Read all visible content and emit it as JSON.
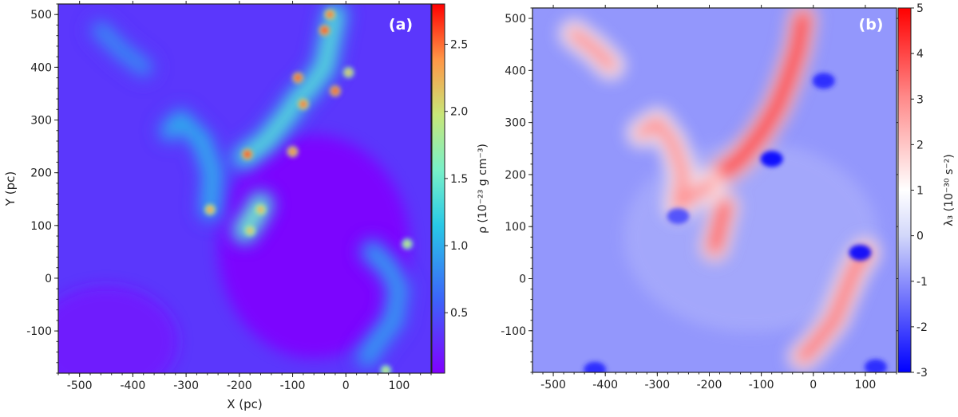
{
  "chart_data": [
    {
      "type": "heatmap",
      "panel_label": "(a)",
      "xlabel": "X (pc)",
      "ylabel": "Y (pc)",
      "xlim": [
        -540,
        160
      ],
      "ylim": [
        -180,
        520
      ],
      "xticks": [
        -500,
        -400,
        -300,
        -200,
        -100,
        0,
        100
      ],
      "yticks": [
        -100,
        0,
        100,
        200,
        300,
        400,
        500
      ],
      "xticklabels": [
        "-500",
        "-400",
        "-300",
        "-200",
        "-100",
        "0",
        "100"
      ],
      "yticklabels": [
        "-100",
        "0",
        "100",
        "200",
        "300",
        "400",
        "500"
      ],
      "colorbar": {
        "label": "ρ (10⁻²³ g cm⁻³)",
        "colormap": "rainbow",
        "range": [
          0.05,
          2.8
        ],
        "ticks": [
          0.5,
          1.0,
          1.5,
          2.0,
          2.5
        ],
        "ticklabels": [
          "0.5",
          "1.0",
          "1.5",
          "2.0",
          "2.5"
        ]
      },
      "features": [
        {
          "name": "filament-main",
          "points": [
            [
              -190,
              230
            ],
            [
              -150,
              260
            ],
            [
              -110,
              310
            ],
            [
              -90,
              340
            ],
            [
              -70,
              360
            ],
            [
              -40,
              400
            ],
            [
              -30,
              450
            ],
            [
              -20,
              500
            ]
          ],
          "value": 1.4
        },
        {
          "name": "filament-south",
          "points": [
            [
              -190,
              90
            ],
            [
              -170,
              120
            ],
            [
              -160,
              140
            ]
          ],
          "value": 1.6
        },
        {
          "name": "cloud-west",
          "points": [
            [
              -330,
              280
            ],
            [
              -310,
              300
            ],
            [
              -270,
              260
            ],
            [
              -250,
              200
            ],
            [
              -255,
              130
            ]
          ],
          "value": 1.0
        },
        {
          "name": "cloud-southeast",
          "points": [
            [
              50,
              50
            ],
            [
              80,
              20
            ],
            [
              100,
              -20
            ],
            [
              90,
              -80
            ],
            [
              60,
              -120
            ],
            [
              40,
              -150
            ]
          ],
          "value": 0.9
        },
        {
          "name": "cloud-northwest",
          "points": [
            [
              -460,
              470
            ],
            [
              -420,
              430
            ],
            [
              -380,
              400
            ]
          ],
          "value": 0.8
        }
      ],
      "peaks": [
        {
          "x": -40,
          "y": 470,
          "value": 2.8
        },
        {
          "x": -30,
          "y": 500,
          "value": 2.6
        },
        {
          "x": -90,
          "y": 380,
          "value": 2.7
        },
        {
          "x": -20,
          "y": 355,
          "value": 2.7
        },
        {
          "x": -80,
          "y": 330,
          "value": 2.6
        },
        {
          "x": -185,
          "y": 235,
          "value": 2.8
        },
        {
          "x": -100,
          "y": 240,
          "value": 2.5
        },
        {
          "x": -255,
          "y": 130,
          "value": 2.4
        },
        {
          "x": -180,
          "y": 90,
          "value": 2.2
        },
        {
          "x": -160,
          "y": 130,
          "value": 2.3
        },
        {
          "x": 5,
          "y": 390,
          "value": 2.2
        },
        {
          "x": 115,
          "y": 65,
          "value": 2.0
        },
        {
          "x": 75,
          "y": -175,
          "value": 2.0
        }
      ]
    },
    {
      "type": "heatmap",
      "panel_label": "(b)",
      "xlabel": "",
      "ylabel": "",
      "xlim": [
        -540,
        160
      ],
      "ylim": [
        -180,
        520
      ],
      "xticks": [
        -500,
        -400,
        -300,
        -200,
        -100,
        0,
        100
      ],
      "yticks": [
        -100,
        0,
        100,
        200,
        300,
        400,
        500
      ],
      "xticklabels": [
        "-500",
        "-400",
        "-300",
        "-200",
        "-100",
        "0",
        "100"
      ],
      "yticklabels": [
        "-100",
        "0",
        "100",
        "200",
        "300",
        "400",
        "500"
      ],
      "colorbar": {
        "label": "λ₃ (10⁻³⁰ s⁻²)",
        "colormap": "bwr",
        "range": [
          -3,
          5
        ],
        "ticks": [
          -3,
          -2,
          -1,
          0,
          1,
          2,
          3,
          4,
          5
        ],
        "ticklabels": [
          "-3",
          "-2",
          "-1",
          "0",
          "1",
          "2",
          "3",
          "4",
          "5"
        ]
      },
      "features": [
        {
          "name": "filament-main",
          "points": [
            [
              -180,
              200
            ],
            [
              -140,
              230
            ],
            [
              -100,
              280
            ],
            [
              -70,
              330
            ],
            [
              -50,
              380
            ],
            [
              -30,
              440
            ],
            [
              -20,
              500
            ]
          ],
          "value": 5.0
        },
        {
          "name": "filament-south",
          "points": [
            [
              -190,
              60
            ],
            [
              -180,
              100
            ],
            [
              -170,
              140
            ]
          ],
          "value": 4.0
        },
        {
          "name": "cloud-west",
          "points": [
            [
              -330,
              280
            ],
            [
              -300,
              300
            ],
            [
              -270,
              260
            ],
            [
              -250,
              200
            ],
            [
              -260,
              140
            ],
            [
              -200,
              180
            ]
          ],
          "value": 3.0
        },
        {
          "name": "cloud-southeast",
          "points": [
            [
              100,
              50
            ],
            [
              80,
              20
            ],
            [
              60,
              -30
            ],
            [
              40,
              -80
            ],
            [
              0,
              -130
            ],
            [
              -20,
              -150
            ]
          ],
          "value": 3.5
        },
        {
          "name": "cloud-northwest",
          "points": [
            [
              -460,
              470
            ],
            [
              -420,
              440
            ],
            [
              -390,
              410
            ]
          ],
          "value": 3.0
        }
      ],
      "wells": [
        {
          "x": -80,
          "y": 230,
          "value": -3
        },
        {
          "x": 90,
          "y": 50,
          "value": -3
        },
        {
          "x": -260,
          "y": 120,
          "value": -2
        },
        {
          "x": 20,
          "y": 380,
          "value": -2.5
        },
        {
          "x": -420,
          "y": -175,
          "value": -2.5
        },
        {
          "x": 120,
          "y": -170,
          "value": -2.5
        }
      ]
    }
  ]
}
